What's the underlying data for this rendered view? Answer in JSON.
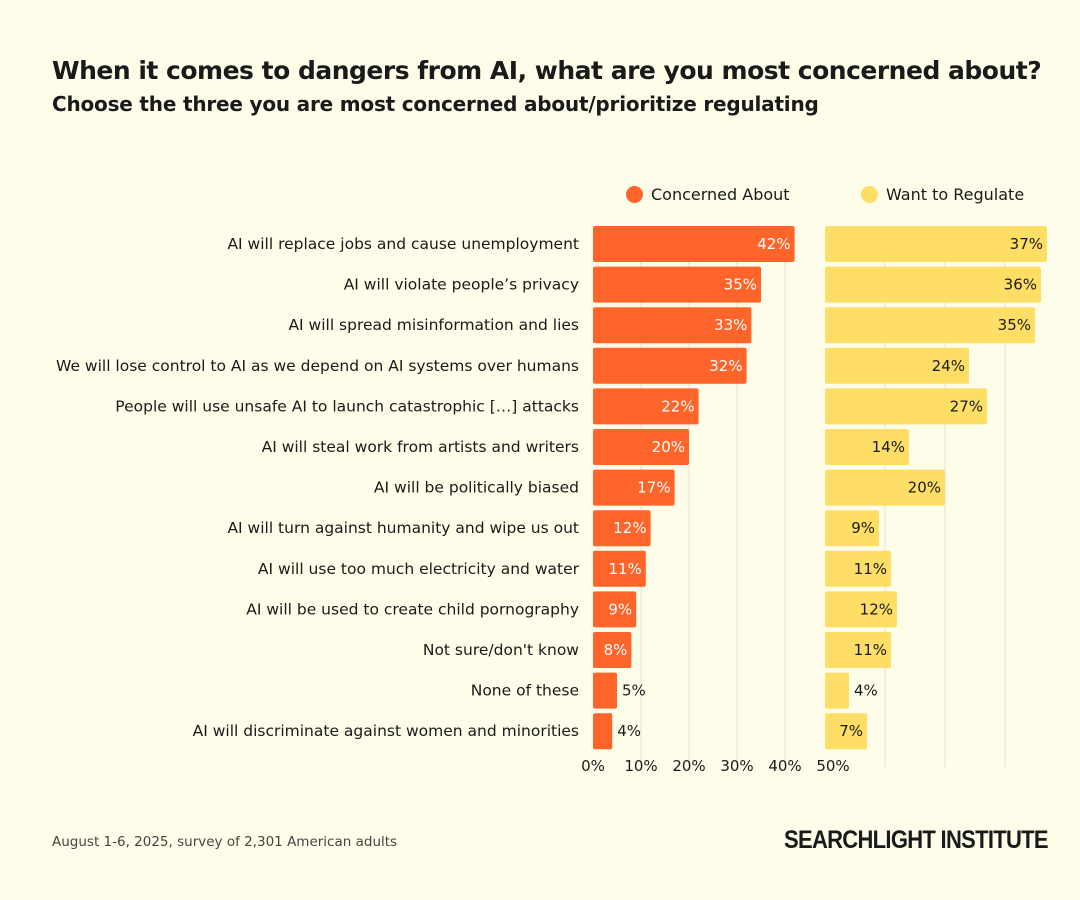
{
  "title": "When it comes to dangers from AI, what are you most concerned about?",
  "subtitle": "Choose the three you are most concerned about/prioritize regulating",
  "footer_note": "August 1-6, 2025, survey of 2,301 American adults",
  "brand": "SEARCHLIGHT INSTITUTE",
  "chart_data": {
    "type": "bar",
    "orientation": "horizontal",
    "categories": [
      "AI will replace jobs and cause unemployment",
      "AI will violate people’s privacy",
      "AI will spread misinformation and lies",
      "We will lose control to AI as we depend on AI systems over humans",
      "People will use unsafe AI to launch catastrophic […] attacks",
      "AI will steal work from artists and writers",
      "AI will be politically biased",
      "AI will turn against humanity and wipe us out",
      "AI will use too much electricity and water",
      "AI will be used to create child pornography",
      "Not sure/don't know",
      "None of these",
      "AI will discriminate against women and minorities"
    ],
    "series": [
      {
        "name": "Concerned About",
        "color": "#ff652b",
        "values": [
          42,
          35,
          33,
          32,
          22,
          20,
          17,
          12,
          11,
          9,
          8,
          5,
          4
        ]
      },
      {
        "name": "Want to Regulate",
        "color": "#ffde66",
        "values": [
          37,
          36,
          35,
          24,
          27,
          14,
          20,
          9,
          11,
          12,
          11,
          4,
          7
        ]
      }
    ],
    "xlim": [
      0,
      50
    ],
    "x_ticks": [
      "0%",
      "10%",
      "20%",
      "30%",
      "40%",
      "50%"
    ],
    "grid": true,
    "legend": "top",
    "value_suffix": "%"
  }
}
